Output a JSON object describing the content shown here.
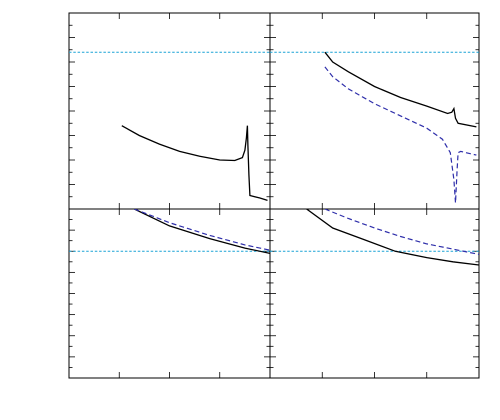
{
  "chart_data": [
    {
      "panel": "top-left",
      "type": "line",
      "xlim": [
        0,
        4
      ],
      "ylim": [
        0,
        8
      ],
      "grid": false,
      "reference_lines": [
        {
          "y": 6.4,
          "color": "#1ba3d6",
          "style": "dotted"
        }
      ],
      "series": [
        {
          "style": "solid",
          "color": "#000000",
          "x": [
            1.05,
            1.4,
            1.8,
            2.2,
            2.6,
            3.0,
            3.3,
            3.45,
            3.5,
            3.53,
            3.55,
            3.56,
            3.58,
            3.6,
            3.8,
            3.95
          ],
          "y": [
            3.4,
            3.0,
            2.65,
            2.35,
            2.15,
            2.0,
            1.98,
            2.1,
            2.4,
            2.9,
            3.4,
            2.6,
            1.4,
            0.55,
            0.45,
            0.35
          ]
        }
      ]
    },
    {
      "panel": "top-right",
      "type": "line",
      "xlim": [
        0,
        4
      ],
      "ylim": [
        0,
        8
      ],
      "grid": false,
      "reference_lines": [
        {
          "y": 6.4,
          "color": "#1ba3d6",
          "style": "dotted"
        }
      ],
      "series": [
        {
          "style": "solid",
          "color": "#000000",
          "x": [
            1.05,
            1.2,
            1.5,
            2.0,
            2.5,
            3.0,
            3.4,
            3.48,
            3.52,
            3.55,
            3.6,
            3.95
          ],
          "y": [
            6.4,
            6.0,
            5.6,
            5.0,
            4.55,
            4.2,
            3.9,
            3.95,
            4.1,
            3.7,
            3.5,
            3.35
          ]
        },
        {
          "style": "dashed",
          "color": "#2e2eaa",
          "x": [
            1.05,
            1.2,
            1.5,
            2.0,
            2.5,
            3.0,
            3.3,
            3.45,
            3.52,
            3.55,
            3.58,
            3.6,
            3.65,
            3.95
          ],
          "y": [
            5.8,
            5.4,
            4.9,
            4.3,
            3.8,
            3.3,
            2.85,
            2.3,
            1.2,
            0.25,
            1.6,
            2.3,
            2.35,
            2.2
          ]
        }
      ]
    },
    {
      "panel": "bottom-left",
      "type": "line",
      "xlim": [
        0,
        4
      ],
      "ylim": [
        0,
        8
      ],
      "grid": false,
      "reference_lines": [
        {
          "y": 6.0,
          "color": "#1ba3d6",
          "style": "dotted"
        }
      ],
      "series": [
        {
          "style": "solid",
          "color": "#000000",
          "x": [
            1.3,
            2.0,
            2.8,
            3.5,
            4.0
          ],
          "y": [
            8.0,
            7.2,
            6.6,
            6.15,
            5.9
          ]
        },
        {
          "style": "dashed",
          "color": "#2e2eaa",
          "x": [
            1.3,
            2.0,
            2.8,
            3.5,
            4.0
          ],
          "y": [
            8.0,
            7.35,
            6.75,
            6.3,
            6.05
          ]
        }
      ]
    },
    {
      "panel": "bottom-right",
      "type": "line",
      "xlim": [
        0,
        4
      ],
      "ylim": [
        0,
        8
      ],
      "grid": false,
      "reference_lines": [
        {
          "y": 6.0,
          "color": "#1ba3d6",
          "style": "dotted"
        }
      ],
      "series": [
        {
          "style": "solid",
          "color": "#000000",
          "x": [
            0.7,
            1.2,
            1.8,
            2.4,
            3.0,
            3.5,
            4.0
          ],
          "y": [
            8.0,
            7.1,
            6.55,
            6.0,
            5.7,
            5.5,
            5.35
          ]
        },
        {
          "style": "dashed",
          "color": "#2e2eaa",
          "x": [
            1.05,
            1.5,
            2.0,
            2.5,
            3.0,
            3.5,
            4.0
          ],
          "y": [
            8.0,
            7.55,
            7.1,
            6.7,
            6.35,
            6.1,
            5.85
          ]
        }
      ]
    }
  ]
}
